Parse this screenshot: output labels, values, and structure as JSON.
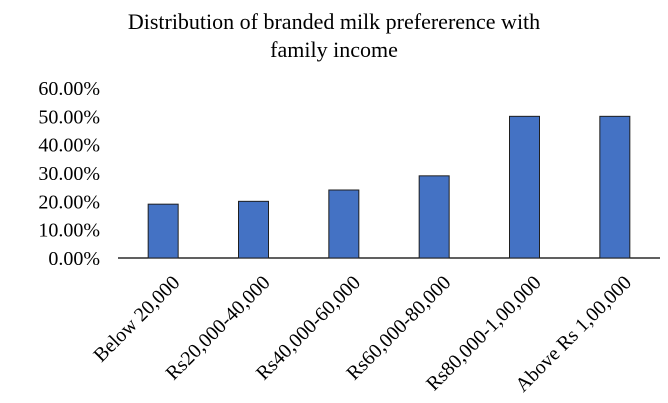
{
  "chart_data": {
    "type": "bar",
    "title": "Distribution of branded  milk prefererence with\nfamily income",
    "categories": [
      "Below 20,000",
      "Rs20,000-40,000",
      "Rs40,000-60,000",
      "Rs60,000-80,000",
      "Rs80,000-1,00,000",
      "Above Rs 1,00,000"
    ],
    "values": [
      0.19,
      0.2,
      0.24,
      0.29,
      0.5,
      0.5
    ],
    "ylim": [
      0,
      0.6
    ],
    "y_ticks": [
      "0.00%",
      "10.00%",
      "20.00%",
      "30.00%",
      "40.00%",
      "50.00%",
      "60.00%"
    ],
    "grid": false,
    "legend": "none",
    "xlabel": "",
    "ylabel": "",
    "bar_color": "#4472c4"
  }
}
